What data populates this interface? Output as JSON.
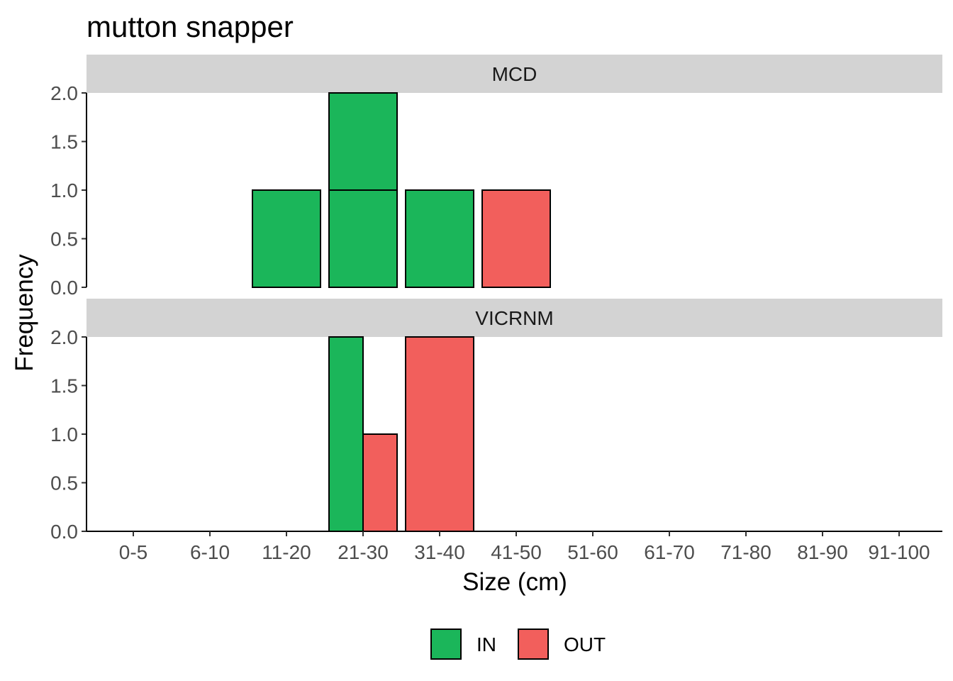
{
  "chart_data": {
    "type": "bar",
    "title": "mutton snapper",
    "xlabel": "Size (cm)",
    "ylabel": "Frequency",
    "ylim": [
      0,
      2
    ],
    "yticks": [
      "0.0",
      "0.5",
      "1.0",
      "1.5",
      "2.0"
    ],
    "grid": false,
    "legend_position": "bottom",
    "categories": [
      "0-5",
      "6-10",
      "11-20",
      "21-30",
      "31-40",
      "41-50",
      "51-60",
      "61-70",
      "71-80",
      "81-90",
      "91-100"
    ],
    "legend": [
      {
        "name": "IN",
        "color": "#1bb65a"
      },
      {
        "name": "OUT",
        "color": "#f25f5c"
      }
    ],
    "panels": [
      {
        "label": "MCD",
        "bars": [
          {
            "category": "0-5",
            "group": "IN",
            "value": 0
          },
          {
            "category": "6-10",
            "group": "IN",
            "value": 0
          },
          {
            "category": "11-20",
            "group": "IN",
            "value": 1
          },
          {
            "category": "21-30",
            "group": "IN",
            "value": 1
          },
          {
            "category": "21-30",
            "group": "IN",
            "value": 1
          },
          {
            "category": "31-40",
            "group": "IN",
            "value": 1
          },
          {
            "category": "41-50",
            "group": "OUT",
            "value": 1
          },
          {
            "category": "51-60",
            "group": "IN",
            "value": 0
          },
          {
            "category": "61-70",
            "group": "IN",
            "value": 0
          },
          {
            "category": "71-80",
            "group": "IN",
            "value": 0
          },
          {
            "category": "81-90",
            "group": "IN",
            "value": 0
          },
          {
            "category": "91-100",
            "group": "IN",
            "value": 0
          }
        ]
      },
      {
        "label": "VICRNM",
        "bars": [
          {
            "category": "0-5",
            "group": "IN",
            "value": 0
          },
          {
            "category": "6-10",
            "group": "IN",
            "value": 0
          },
          {
            "category": "11-20",
            "group": "IN",
            "value": 0
          },
          {
            "category": "21-30",
            "group": "IN",
            "value": 2
          },
          {
            "category": "21-30",
            "group": "OUT",
            "value": 1
          },
          {
            "category": "31-40",
            "group": "OUT",
            "value": 2
          },
          {
            "category": "41-50",
            "group": "IN",
            "value": 0
          },
          {
            "category": "51-60",
            "group": "IN",
            "value": 0
          },
          {
            "category": "61-70",
            "group": "IN",
            "value": 0
          },
          {
            "category": "71-80",
            "group": "IN",
            "value": 0
          },
          {
            "category": "81-90",
            "group": "IN",
            "value": 0
          },
          {
            "category": "91-100",
            "group": "IN",
            "value": 0
          }
        ]
      }
    ]
  }
}
